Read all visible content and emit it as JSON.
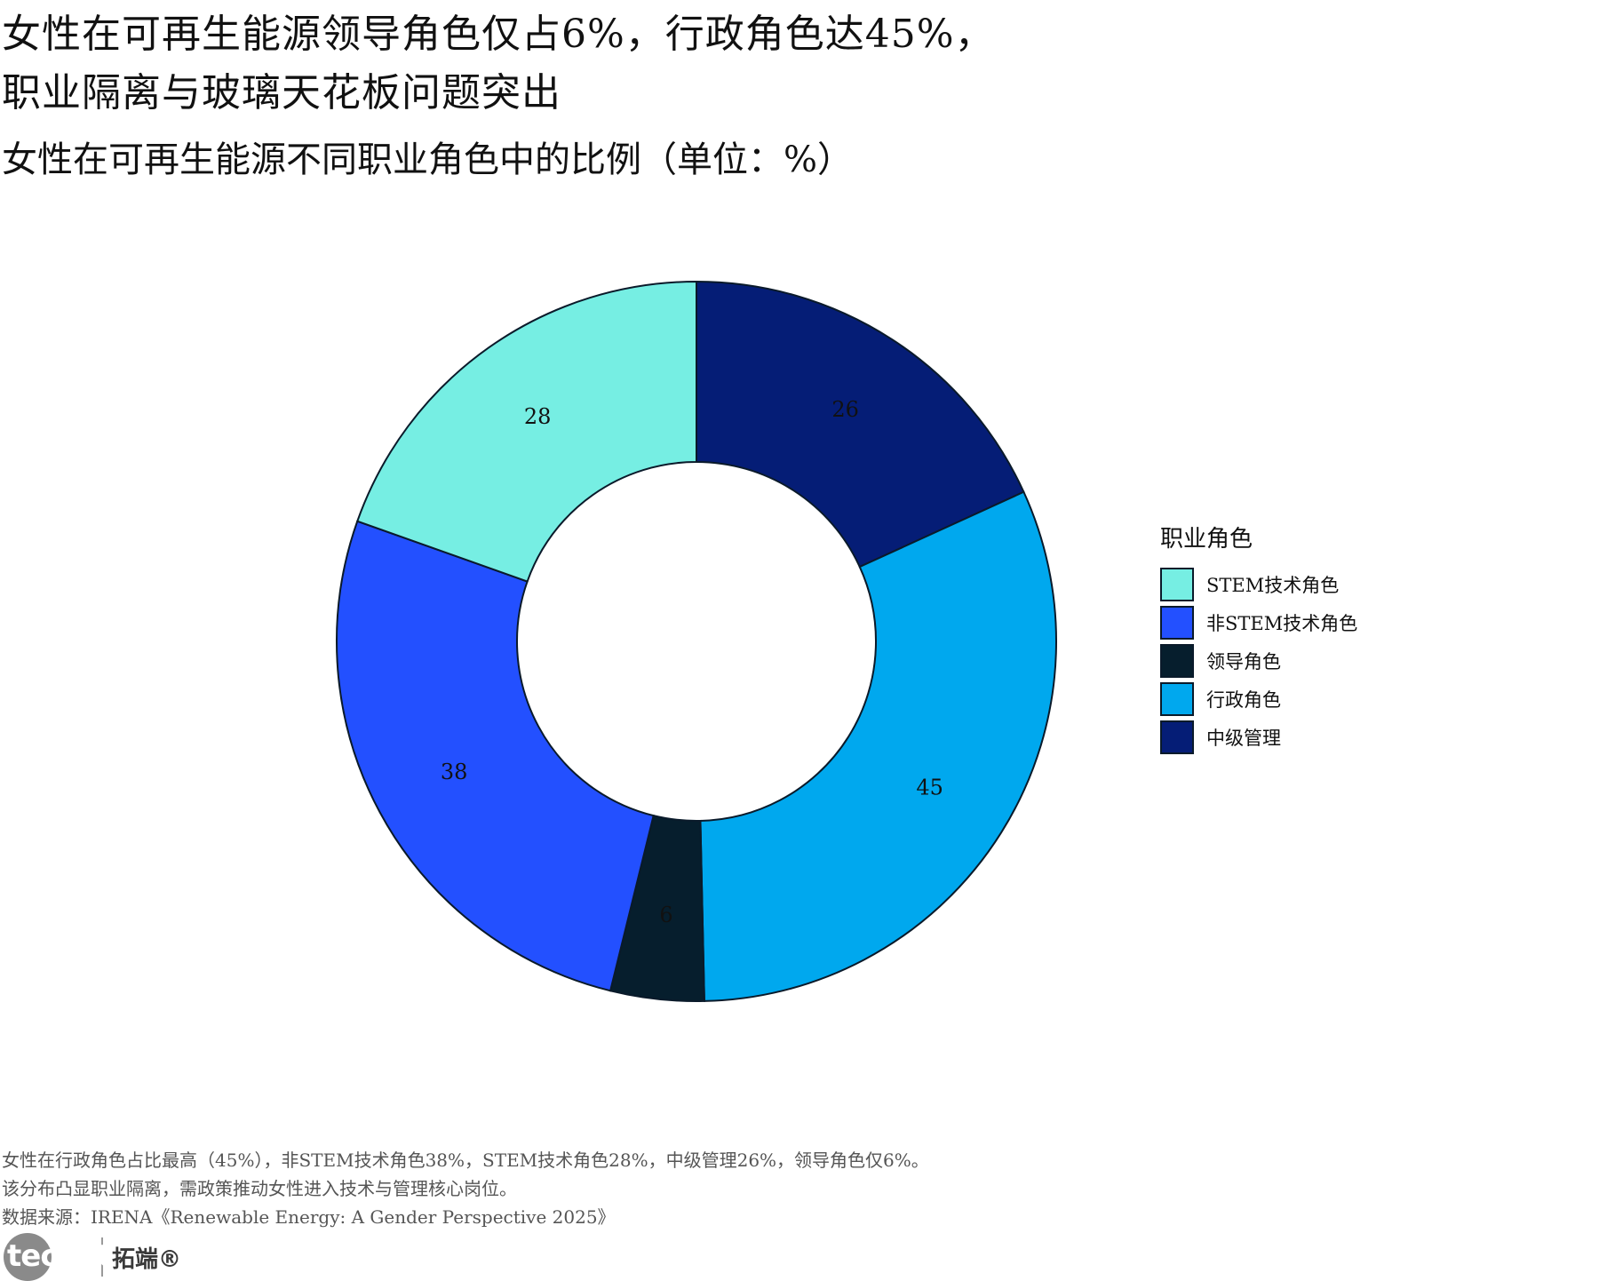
{
  "header": {
    "title_line1": "女性在可再生能源领导角色仅占6%，行政角色达45%，",
    "title_line2": "职业隔离与玻璃天花板问题突出",
    "subtitle": "女性在可再生能源不同职业角色中的比例（单位：%）"
  },
  "chart_data": {
    "type": "pie",
    "donut": true,
    "title": "女性在可再生能源领导角色仅占6%，行政角色达45%，职业隔离与玻璃天花板问题突出",
    "subtitle": "女性在可再生能源不同职业角色中的比例（单位：%）",
    "legend_title": "职业角色",
    "legend_position": "right",
    "categories": [
      "STEM技术角色",
      "非STEM技术角色",
      "领导角色",
      "行政角色",
      "中级管理"
    ],
    "values": [
      28,
      38,
      6,
      45,
      26
    ],
    "data_labels": [
      "28",
      "38",
      "6",
      "45",
      "26"
    ],
    "colors": [
      "#76EEE3",
      "#2350FF",
      "#061E2D",
      "#00A8EE",
      "#051D76"
    ],
    "slice_order_clockwise_from_top": [
      "中级管理",
      "行政角色",
      "领导角色",
      "非STEM技术角色",
      "STEM技术角色"
    ]
  },
  "notes": {
    "line1": "女性在行政角色占比最高（45%），非STEM技术角色38%，STEM技术角色28%，中级管理26%，领导角色仅6%。",
    "line2": "该分布凸显职业隔离，需政策推动女性进入技术与管理核心岗位。",
    "source": "数据来源：IRENA《Renewable Energy: A Gender Perspective 2025》"
  },
  "brand": {
    "logo_text": "tecdat",
    "cn_name": "拓端®"
  }
}
